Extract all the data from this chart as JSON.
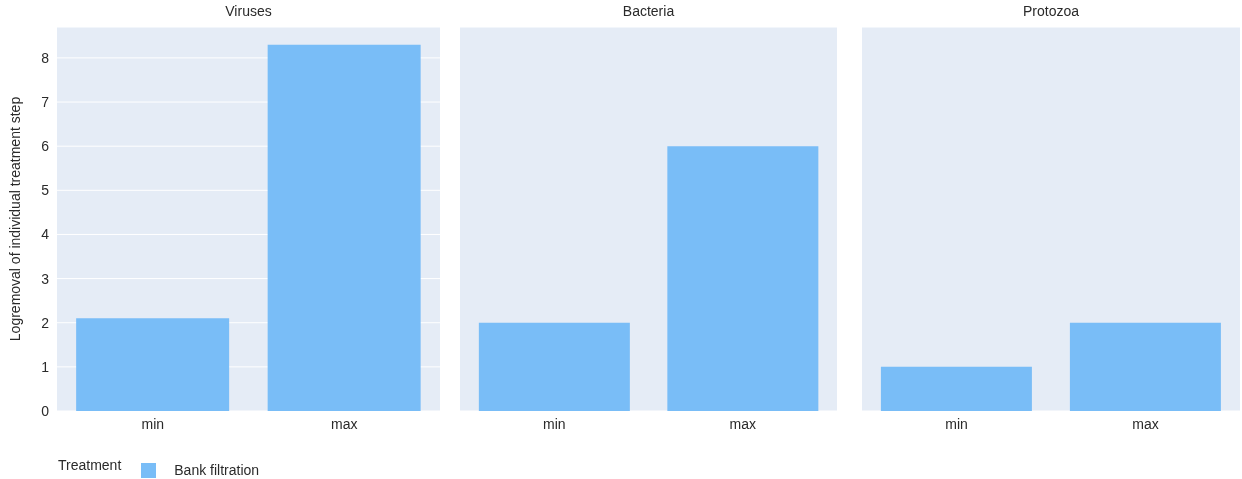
{
  "chart_data": [
    {
      "type": "bar",
      "title": "Viruses",
      "ylabel": "Logremoval of individual treatment step",
      "legend_title": "Treatment",
      "legend": "bottom left",
      "categories": [
        "min",
        "max"
      ],
      "series": [
        {
          "name": "Bank filtration",
          "color": "#79bdf7",
          "values": [
            2.1,
            8.3
          ]
        }
      ],
      "ylim": [
        0,
        8.7
      ],
      "yticks": [
        0,
        1,
        2,
        3,
        4,
        5,
        6,
        7,
        8
      ],
      "grid": "y"
    },
    {
      "type": "bar",
      "title": "Bacteria",
      "categories": [
        "min",
        "max"
      ],
      "series": [
        {
          "color": "#79bdf7",
          "values": [
            2,
            6
          ]
        }
      ],
      "ylim": [
        0,
        8.7
      ],
      "yticks": [
        0,
        1,
        2,
        3,
        4,
        5,
        6,
        7,
        8
      ],
      "grid": "y",
      "tick_labels": "x"
    },
    {
      "type": "bar",
      "title": "Protozoa",
      "categories": [
        "min",
        "max"
      ],
      "series": [
        {
          "color": "#79bdf7",
          "values": [
            1,
            2
          ]
        }
      ],
      "ylim": [
        0,
        8.7
      ],
      "yticks": [
        0,
        1,
        2,
        3,
        4,
        5,
        6,
        7,
        8
      ],
      "grid": "y",
      "tick_labels": "x"
    }
  ]
}
